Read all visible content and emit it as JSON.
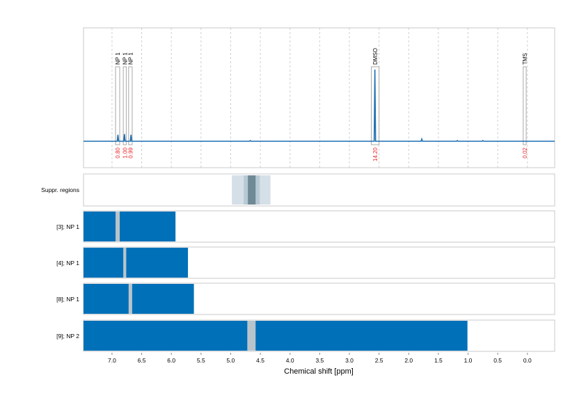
{
  "chart_data": {
    "type": "line",
    "xlabel": "Chemical shift [ppm]",
    "xlim": [
      7.48,
      -0.46
    ],
    "x_ticks": [
      "7.0",
      "6.5",
      "6.0",
      "5.5",
      "5.0",
      "4.5",
      "4.0",
      "3.5",
      "3.0",
      "2.5",
      "2.0",
      "1.5",
      "1.0",
      "0.5",
      "0.0"
    ],
    "grid": "vertical dotted",
    "spectrum": {
      "color": "#1f6fb2",
      "peaks": [
        {
          "ppm": 6.9,
          "height": 0.09
        },
        {
          "ppm": 6.79,
          "height": 0.1
        },
        {
          "ppm": 6.68,
          "height": 0.09
        },
        {
          "ppm": 4.67,
          "height": 0.01
        },
        {
          "ppm": 2.57,
          "height": 1.0
        },
        {
          "ppm": 1.78,
          "height": 0.03
        },
        {
          "ppm": 1.18,
          "height": 0.01
        },
        {
          "ppm": 0.75,
          "height": 0.01
        }
      ]
    },
    "annotations": [
      {
        "label": "NP 1",
        "from": 6.94,
        "to": 6.87,
        "integral": "0.80"
      },
      {
        "label": "NP 1",
        "from": 6.81,
        "to": 6.76,
        "integral": "1.00"
      },
      {
        "label": "NP 1",
        "from": 6.72,
        "to": 6.66,
        "integral": "0.99"
      },
      {
        "label": "DMSO",
        "from": 2.63,
        "to": 2.5,
        "integral": "14.20"
      },
      {
        "label": "TMS",
        "from": 0.07,
        "to": 0.02,
        "integral": "0.02"
      }
    ],
    "suppression": {
      "label": "Suppr. regions",
      "regions": [
        {
          "from": 4.98,
          "to": 4.33,
          "color": "#d5dfe7"
        },
        {
          "from": 4.78,
          "to": 4.51,
          "color": "#b7c9d3"
        },
        {
          "from": 4.71,
          "to": 4.58,
          "color": "#6f8996"
        }
      ]
    },
    "tracks": [
      {
        "label": "[3]; NP 1",
        "from": 7.48,
        "to": 5.93,
        "gap": [
          6.94,
          6.87
        ]
      },
      {
        "label": "[4]; NP 1",
        "from": 7.48,
        "to": 5.72,
        "gap": [
          6.81,
          6.76
        ]
      },
      {
        "label": "[8]; NP 1",
        "from": 7.48,
        "to": 5.62,
        "gap": [
          6.72,
          6.66
        ]
      },
      {
        "label": "[9]; NP 2",
        "from": 7.48,
        "to": 1.01,
        "gap": [
          4.72,
          4.58
        ]
      }
    ],
    "colors": {
      "track": "#0070b8",
      "gap": "#b8c4cc",
      "integral": "#e8252a",
      "frame": "#c8c8c8"
    }
  }
}
